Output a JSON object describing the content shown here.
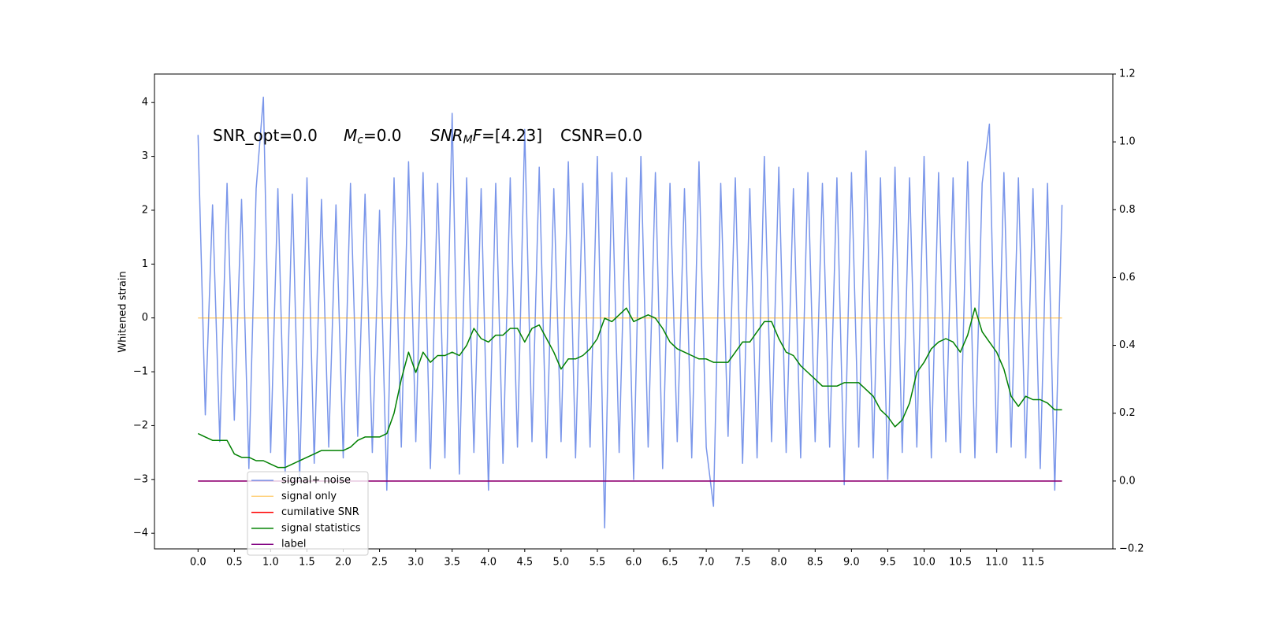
{
  "chart_data": {
    "type": "line",
    "ylabel": "Whitened strain",
    "annotations": [
      [
        {
          "text": "SNR_opt=0.0"
        }
      ],
      [
        {
          "text": "M",
          "italic": true
        },
        {
          "text": "c",
          "italic": true,
          "sub": true
        },
        {
          "text": "=0.0"
        }
      ],
      [
        {
          "text": "SNR",
          "italic": true
        },
        {
          "text": "M",
          "italic": true,
          "sub": true
        },
        {
          "text": "F",
          "italic": true
        },
        {
          "text": "=[4.23]"
        }
      ],
      [
        {
          "text": "CSNR=0.0"
        }
      ]
    ],
    "xlim": [
      -0.6,
      12.6
    ],
    "ylim": [
      -4.29,
      4.53
    ],
    "y2lim": [
      -0.2,
      1.2
    ],
    "xticks": [
      {
        "value": 0,
        "label": "0.0"
      },
      {
        "value": 0.5,
        "label": "0.5"
      },
      {
        "value": 1,
        "label": "1.0"
      },
      {
        "value": 1.5,
        "label": "1.5"
      },
      {
        "value": 2,
        "label": "2.0"
      },
      {
        "value": 2.5,
        "label": "2.5"
      },
      {
        "value": 3,
        "label": "3.0"
      },
      {
        "value": 3.5,
        "label": "3.5"
      },
      {
        "value": 4,
        "label": "4.0"
      },
      {
        "value": 4.5,
        "label": "4.5"
      },
      {
        "value": 5,
        "label": "5.0"
      },
      {
        "value": 5.5,
        "label": "5.5"
      },
      {
        "value": 6,
        "label": "6.0"
      },
      {
        "value": 6.5,
        "label": "6.5"
      },
      {
        "value": 7,
        "label": "7.0"
      },
      {
        "value": 7.5,
        "label": "7.5"
      },
      {
        "value": 8,
        "label": "8.0"
      },
      {
        "value": 8.5,
        "label": "8.5"
      },
      {
        "value": 9,
        "label": "9.0"
      },
      {
        "value": 9.5,
        "label": "9.5"
      },
      {
        "value": 10,
        "label": "10.0"
      },
      {
        "value": 10.5,
        "label": "10.5"
      },
      {
        "value": 11,
        "label": "11.0"
      },
      {
        "value": 11.5,
        "label": "11.5"
      }
    ],
    "yticks": [
      {
        "value": -4,
        "label": "−4"
      },
      {
        "value": -3,
        "label": "−3"
      },
      {
        "value": -2,
        "label": "−2"
      },
      {
        "value": -1,
        "label": "−1"
      },
      0,
      1,
      2,
      3,
      4
    ],
    "y2ticks": [
      {
        "value": -0.2,
        "label": "−0.2"
      },
      {
        "value": 0,
        "label": "0.0"
      },
      {
        "value": 0.2,
        "label": "0.2"
      },
      {
        "value": 0.4,
        "label": "0.4"
      },
      {
        "value": 0.6,
        "label": "0.6"
      },
      {
        "value": 0.8,
        "label": "0.8"
      },
      {
        "value": 1,
        "label": "1.0"
      },
      {
        "value": 1.2,
        "label": "1.2"
      }
    ],
    "grid": false,
    "legend": "lower left",
    "x": [
      0,
      0.1,
      0.2,
      0.3,
      0.4,
      0.5,
      0.6,
      0.7,
      0.8,
      0.9,
      1,
      1.1,
      1.2,
      1.3,
      1.4,
      1.5,
      1.6,
      1.7,
      1.8,
      1.9,
      2,
      2.1,
      2.2,
      2.3,
      2.4,
      2.5,
      2.6,
      2.7,
      2.8,
      2.9,
      3,
      3.1,
      3.2,
      3.3,
      3.4,
      3.5,
      3.6,
      3.7,
      3.8,
      3.9,
      4,
      4.1,
      4.2,
      4.3,
      4.4,
      4.5,
      4.6,
      4.7,
      4.8,
      4.9,
      5,
      5.1,
      5.2,
      5.3,
      5.4,
      5.5,
      5.6,
      5.7,
      5.8,
      5.9,
      6,
      6.1,
      6.2,
      6.3,
      6.4,
      6.5,
      6.6,
      6.7,
      6.8,
      6.9,
      7,
      7.1,
      7.2,
      7.3,
      7.4,
      7.5,
      7.6,
      7.7,
      7.8,
      7.9,
      8,
      8.1,
      8.2,
      8.3,
      8.4,
      8.5,
      8.6,
      8.7,
      8.8,
      8.9,
      9,
      9.1,
      9.2,
      9.3,
      9.4,
      9.5,
      9.6,
      9.7,
      9.8,
      9.9,
      10,
      10.1,
      10.2,
      10.3,
      10.4,
      10.5,
      10.6,
      10.7,
      10.8,
      10.9,
      11,
      11.1,
      11.2,
      11.3,
      11.4,
      11.5,
      11.6,
      11.7,
      11.8,
      11.9
    ],
    "series": [
      {
        "name": "signal+ noise",
        "color": "#4169e1",
        "alpha": 0.7,
        "axis": "y",
        "values": [
          3.4,
          -1.8,
          2.1,
          -2.3,
          2.5,
          -1.9,
          2.2,
          -2.8,
          2.4,
          4.1,
          -2.5,
          2.4,
          -2.9,
          2.3,
          -3.0,
          2.6,
          -2.7,
          2.2,
          -2.4,
          2.1,
          -2.6,
          2.5,
          -2.2,
          2.3,
          -2.5,
          2.0,
          -3.2,
          2.6,
          -2.4,
          2.9,
          -2.3,
          2.7,
          -2.8,
          2.5,
          -2.6,
          3.8,
          -2.9,
          2.6,
          -2.5,
          2.4,
          -3.2,
          2.5,
          -2.7,
          2.6,
          -2.4,
          3.5,
          -2.3,
          2.8,
          -2.6,
          2.4,
          -2.3,
          2.9,
          -2.6,
          2.5,
          -2.4,
          3.0,
          -3.9,
          2.7,
          -2.5,
          2.6,
          -3.0,
          3.0,
          -2.4,
          2.7,
          -2.8,
          2.5,
          -2.3,
          2.4,
          -2.6,
          2.9,
          -2.4,
          -3.5,
          2.5,
          -2.2,
          2.6,
          -2.7,
          2.4,
          -2.6,
          3.0,
          -2.3,
          2.8,
          -2.5,
          2.4,
          -2.6,
          2.7,
          -2.3,
          2.5,
          -2.4,
          2.6,
          -3.1,
          2.7,
          -2.4,
          3.1,
          -2.6,
          2.6,
          -3.0,
          2.8,
          -2.5,
          2.6,
          -2.4,
          3.0,
          -2.6,
          2.7,
          -2.3,
          2.6,
          -2.5,
          2.9,
          -2.6,
          2.5,
          3.6,
          -2.5,
          2.7,
          -2.4,
          2.6,
          -2.6,
          2.4,
          -2.8,
          2.5,
          -3.2,
          2.1
        ]
      },
      {
        "name": "signal only",
        "color": "#ffa500",
        "alpha": 0.5,
        "axis": "y",
        "values": [
          0,
          0,
          0,
          0,
          0,
          0,
          0,
          0,
          0,
          0,
          0,
          0,
          0,
          0,
          0,
          0,
          0,
          0,
          0,
          0,
          0,
          0,
          0,
          0,
          0,
          0,
          0,
          0,
          0,
          0,
          0,
          0,
          0,
          0,
          0,
          0,
          0,
          0,
          0,
          0,
          0,
          0,
          0,
          0,
          0,
          0,
          0,
          0,
          0,
          0,
          0,
          0,
          0,
          0,
          0,
          0,
          0,
          0,
          0,
          0,
          0,
          0,
          0,
          0,
          0,
          0,
          0,
          0,
          0,
          0,
          0,
          0,
          0,
          0,
          0,
          0,
          0,
          0,
          0,
          0,
          0,
          0,
          0,
          0,
          0,
          0,
          0,
          0,
          0,
          0,
          0,
          0,
          0,
          0,
          0,
          0,
          0,
          0,
          0,
          0,
          0,
          0,
          0,
          0,
          0,
          0,
          0,
          0,
          0,
          0,
          0,
          0,
          0,
          0,
          0,
          0,
          0,
          0,
          0,
          0
        ]
      },
      {
        "name": "cumilative SNR",
        "color": "#ff0000",
        "alpha": 1,
        "axis": "y2",
        "values": [
          0,
          0,
          0,
          0,
          0,
          0,
          0,
          0,
          0,
          0,
          0,
          0,
          0,
          0,
          0,
          0,
          0,
          0,
          0,
          0,
          0,
          0,
          0,
          0,
          0,
          0,
          0,
          0,
          0,
          0,
          0,
          0,
          0,
          0,
          0,
          0,
          0,
          0,
          0,
          0,
          0,
          0,
          0,
          0,
          0,
          0,
          0,
          0,
          0,
          0,
          0,
          0,
          0,
          0,
          0,
          0,
          0,
          0,
          0,
          0,
          0,
          0,
          0,
          0,
          0,
          0,
          0,
          0,
          0,
          0,
          0,
          0,
          0,
          0,
          0,
          0,
          0,
          0,
          0,
          0,
          0,
          0,
          0,
          0,
          0,
          0,
          0,
          0,
          0,
          0,
          0,
          0,
          0,
          0,
          0,
          0,
          0,
          0,
          0,
          0,
          0,
          0,
          0,
          0,
          0,
          0,
          0,
          0,
          0,
          0,
          0,
          0,
          0,
          0,
          0,
          0,
          0,
          0,
          0,
          0
        ]
      },
      {
        "name": "signal statistics",
        "color": "#008000",
        "alpha": 1,
        "axis": "y2",
        "values": [
          0.14,
          0.13,
          0.12,
          0.12,
          0.12,
          0.08,
          0.07,
          0.07,
          0.06,
          0.06,
          0.05,
          0.04,
          0.04,
          0.05,
          0.06,
          0.07,
          0.08,
          0.09,
          0.09,
          0.09,
          0.09,
          0.1,
          0.12,
          0.13,
          0.13,
          0.13,
          0.14,
          0.2,
          0.3,
          0.38,
          0.32,
          0.38,
          0.35,
          0.37,
          0.37,
          0.38,
          0.37,
          0.4,
          0.45,
          0.42,
          0.41,
          0.43,
          0.43,
          0.45,
          0.45,
          0.41,
          0.45,
          0.46,
          0.42,
          0.38,
          0.33,
          0.36,
          0.36,
          0.37,
          0.39,
          0.42,
          0.48,
          0.47,
          0.49,
          0.51,
          0.47,
          0.48,
          0.49,
          0.48,
          0.45,
          0.41,
          0.39,
          0.38,
          0.37,
          0.36,
          0.36,
          0.35,
          0.35,
          0.35,
          0.38,
          0.41,
          0.41,
          0.44,
          0.47,
          0.47,
          0.42,
          0.38,
          0.37,
          0.34,
          0.32,
          0.3,
          0.28,
          0.28,
          0.28,
          0.29,
          0.29,
          0.29,
          0.27,
          0.25,
          0.21,
          0.19,
          0.16,
          0.18,
          0.23,
          0.32,
          0.35,
          0.39,
          0.41,
          0.42,
          0.41,
          0.38,
          0.43,
          0.51,
          0.44,
          0.41,
          0.38,
          0.33,
          0.25,
          0.22,
          0.25,
          0.24,
          0.24,
          0.23,
          0.21,
          0.21
        ]
      },
      {
        "name": "label",
        "color": "#800080",
        "alpha": 1,
        "axis": "y2",
        "values": [
          0,
          0,
          0,
          0,
          0,
          0,
          0,
          0,
          0,
          0,
          0,
          0,
          0,
          0,
          0,
          0,
          0,
          0,
          0,
          0,
          0,
          0,
          0,
          0,
          0,
          0,
          0,
          0,
          0,
          0,
          0,
          0,
          0,
          0,
          0,
          0,
          0,
          0,
          0,
          0,
          0,
          0,
          0,
          0,
          0,
          0,
          0,
          0,
          0,
          0,
          0,
          0,
          0,
          0,
          0,
          0,
          0,
          0,
          0,
          0,
          0,
          0,
          0,
          0,
          0,
          0,
          0,
          0,
          0,
          0,
          0,
          0,
          0,
          0,
          0,
          0,
          0,
          0,
          0,
          0,
          0,
          0,
          0,
          0,
          0,
          0,
          0,
          0,
          0,
          0,
          0,
          0,
          0,
          0,
          0,
          0,
          0,
          0,
          0,
          0,
          0,
          0,
          0,
          0,
          0,
          0,
          0,
          0,
          0,
          0,
          0,
          0,
          0,
          0,
          0,
          0,
          0,
          0,
          0,
          0
        ]
      }
    ]
  }
}
